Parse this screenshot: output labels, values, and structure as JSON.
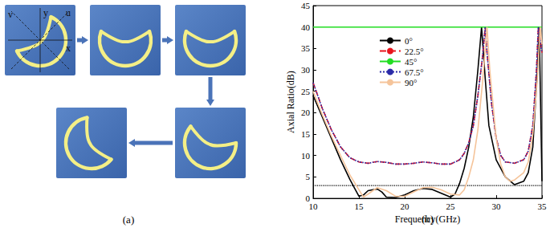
{
  "chart_data": {
    "type": "line",
    "title": "(b)",
    "x_label": "Frequency(GHz)",
    "y_label": "Axial Ratio(dB)",
    "xlim": [
      10,
      35
    ],
    "xticks": [
      10,
      15,
      20,
      25,
      30,
      35
    ],
    "ylim": [
      0,
      45
    ],
    "yticks": [
      0,
      5,
      10,
      15,
      20,
      25,
      30,
      35,
      40,
      45
    ],
    "grid": false,
    "legend": "upper center",
    "threshold": 3,
    "series": [
      {
        "name": "0°",
        "color": "#000000",
        "line_style": "solid",
        "x": [
          10,
          11,
          12,
          13,
          14,
          14.5,
          15,
          15.5,
          16,
          17,
          17.5,
          18,
          19,
          20,
          21,
          22,
          23,
          24,
          25,
          25.5,
          26,
          26.5,
          27,
          27.5,
          28,
          28.4,
          28.8,
          29.2,
          30,
          31,
          32,
          33,
          33.5,
          34,
          34.5,
          34.7,
          35
        ],
        "values": [
          24,
          19,
          14,
          9,
          4.5,
          2.5,
          0.5,
          0.8,
          1.8,
          2.2,
          1.5,
          0.3,
          0.2,
          0.8,
          1.8,
          2.3,
          2.1,
          1.2,
          0.3,
          1,
          3.5,
          7,
          12,
          19,
          30,
          40,
          28,
          17,
          9,
          5,
          3.2,
          4,
          6,
          12,
          30,
          40,
          4
        ]
      },
      {
        "name": "22.5°",
        "color": "#e8141c",
        "line_style": "dashed",
        "x": [
          10,
          11,
          12,
          13,
          14,
          15,
          16,
          17,
          18,
          19,
          20,
          21,
          22,
          23,
          24,
          25,
          26,
          26.5,
          27,
          27.5,
          28,
          28.5,
          28.8,
          29,
          29.5,
          30,
          30.5,
          31,
          32,
          33,
          33.5,
          34,
          34.4,
          34.6,
          35
        ],
        "values": [
          27,
          21,
          16,
          12,
          9.5,
          8.5,
          8.2,
          8.6,
          8.4,
          8,
          8,
          8.2,
          8.5,
          8.3,
          8,
          8,
          9,
          10.5,
          13,
          17,
          24,
          33,
          40,
          34,
          22,
          14,
          10,
          8.5,
          8.2,
          9,
          11,
          17,
          30,
          40,
          34
        ]
      },
      {
        "name": "45°",
        "color": "#22dd22",
        "line_style": "solid",
        "x": [
          10,
          35
        ],
        "values": [
          40,
          40
        ]
      },
      {
        "name": "67.5°",
        "color": "#2a2aa8",
        "line_style": "dotted",
        "x": [
          10,
          11,
          12,
          13,
          14,
          15,
          16,
          17,
          18,
          19,
          20,
          21,
          22,
          23,
          24,
          25,
          26,
          26.5,
          27,
          27.5,
          28,
          28.5,
          28.8,
          29,
          29.5,
          30,
          30.5,
          31,
          32,
          33,
          33.5,
          34,
          34.4,
          34.6,
          35
        ],
        "values": [
          27,
          21,
          16,
          12,
          9.5,
          8.5,
          8.2,
          8.6,
          8.4,
          8,
          8,
          8.2,
          8.5,
          8.3,
          8,
          8,
          9,
          10.5,
          13,
          17,
          24,
          33,
          40,
          34,
          22,
          14,
          10,
          8.5,
          8.2,
          9,
          11,
          17,
          30,
          40,
          34
        ]
      },
      {
        "name": "90°",
        "color": "#f5c49a",
        "line_style": "solid",
        "x": [
          10,
          11,
          12,
          13,
          14,
          15,
          15.5,
          16,
          17,
          18,
          19,
          20,
          21,
          22,
          23,
          24,
          25,
          26,
          26.5,
          27,
          27.5,
          28,
          28.5,
          29,
          29.3,
          30,
          30.5,
          31,
          31.5,
          32,
          33,
          33.5,
          34,
          34.5,
          34.8,
          35
        ],
        "values": [
          25,
          19.5,
          14.5,
          10,
          5.5,
          2,
          0.3,
          1,
          2.5,
          1.8,
          0.5,
          0.5,
          1.5,
          2.5,
          2.6,
          2,
          1,
          0.8,
          2,
          5,
          9,
          16,
          27,
          40,
          30,
          14,
          8,
          5,
          4,
          4.3,
          6,
          8.5,
          15,
          28,
          40,
          36
        ]
      }
    ]
  },
  "diagram": {
    "caption": "(a)",
    "axis_labels": {
      "x": "x",
      "y": "y",
      "u": "u",
      "v": "v"
    }
  }
}
